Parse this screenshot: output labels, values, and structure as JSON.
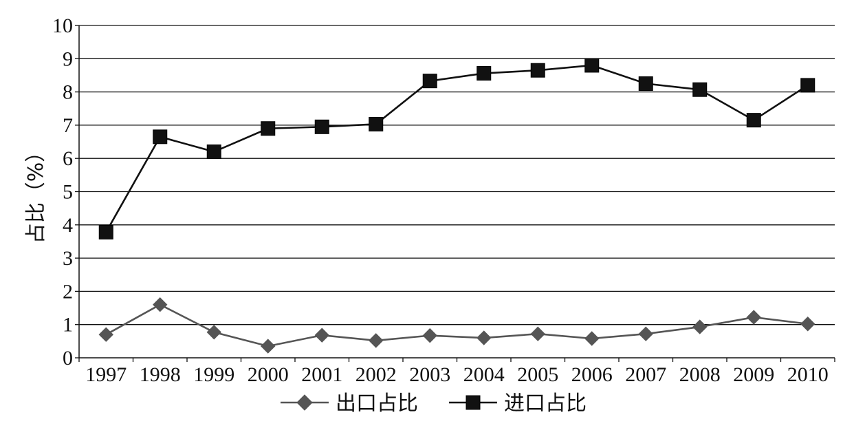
{
  "chart_data": {
    "type": "line",
    "title": "",
    "xlabel": "",
    "ylabel": "占比（%）",
    "ylim": [
      0,
      10
    ],
    "yticks": [
      0,
      1,
      2,
      3,
      4,
      5,
      6,
      7,
      8,
      9,
      10
    ],
    "grid": "horizontal",
    "legend_position": "bottom",
    "categories": [
      "1997",
      "1998",
      "1999",
      "2000",
      "2001",
      "2002",
      "2003",
      "2004",
      "2005",
      "2006",
      "2007",
      "2008",
      "2009",
      "2010"
    ],
    "series": [
      {
        "name": "出口占比",
        "marker": "diamond",
        "color": "#555555",
        "values": [
          0.7,
          1.6,
          0.77,
          0.35,
          0.68,
          0.52,
          0.67,
          0.6,
          0.72,
          0.58,
          0.72,
          0.93,
          1.22,
          1.02
        ]
      },
      {
        "name": "进口占比",
        "marker": "square",
        "color": "#111111",
        "values": [
          3.78,
          6.65,
          6.2,
          6.9,
          6.95,
          7.03,
          8.33,
          8.56,
          8.65,
          8.8,
          8.25,
          8.07,
          7.15,
          8.2
        ]
      }
    ]
  }
}
